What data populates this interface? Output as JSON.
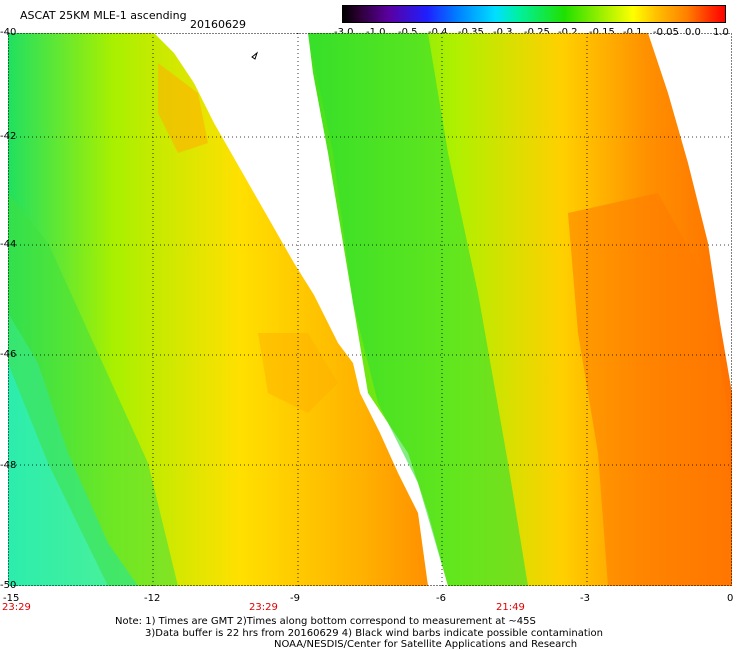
{
  "title": "ASCAT 25KM MLE-1 ascending",
  "date": "20160629",
  "colorbar": {
    "ticks": [
      "-3.0",
      "-1.0",
      "-0.5",
      "-0.4",
      "-0.35",
      "-0.3",
      "-0.25",
      "-0.2",
      "-0.15",
      "-0.1",
      "-0.05",
      "0.0",
      "1.0"
    ],
    "colors": [
      "#000000",
      "#5a00a0",
      "#1f1fff",
      "#0080ff",
      "#00e0ff",
      "#00f0a0",
      "#20e000",
      "#a0f000",
      "#ffff00",
      "#ffc000",
      "#ff8000",
      "#ff0000"
    ]
  },
  "axes": {
    "lat_labels": [
      "-40",
      "-42",
      "-44",
      "-46",
      "-48",
      "-50"
    ],
    "lon_labels": [
      "-15",
      "-12",
      "-9",
      "-6",
      "-3",
      "0"
    ]
  },
  "times": [
    "23:29",
    "23:29",
    "21:49"
  ],
  "notes": [
    "Note: 1) Times are GMT 2)Times along bottom correspond to measurement at ~45S",
    "3)Data buffer is 22 hrs from 20160629 4) Black wind barbs indicate possible contamination",
    "NOAA/NESDIS/Center for Satellite Applications and Research"
  ]
}
